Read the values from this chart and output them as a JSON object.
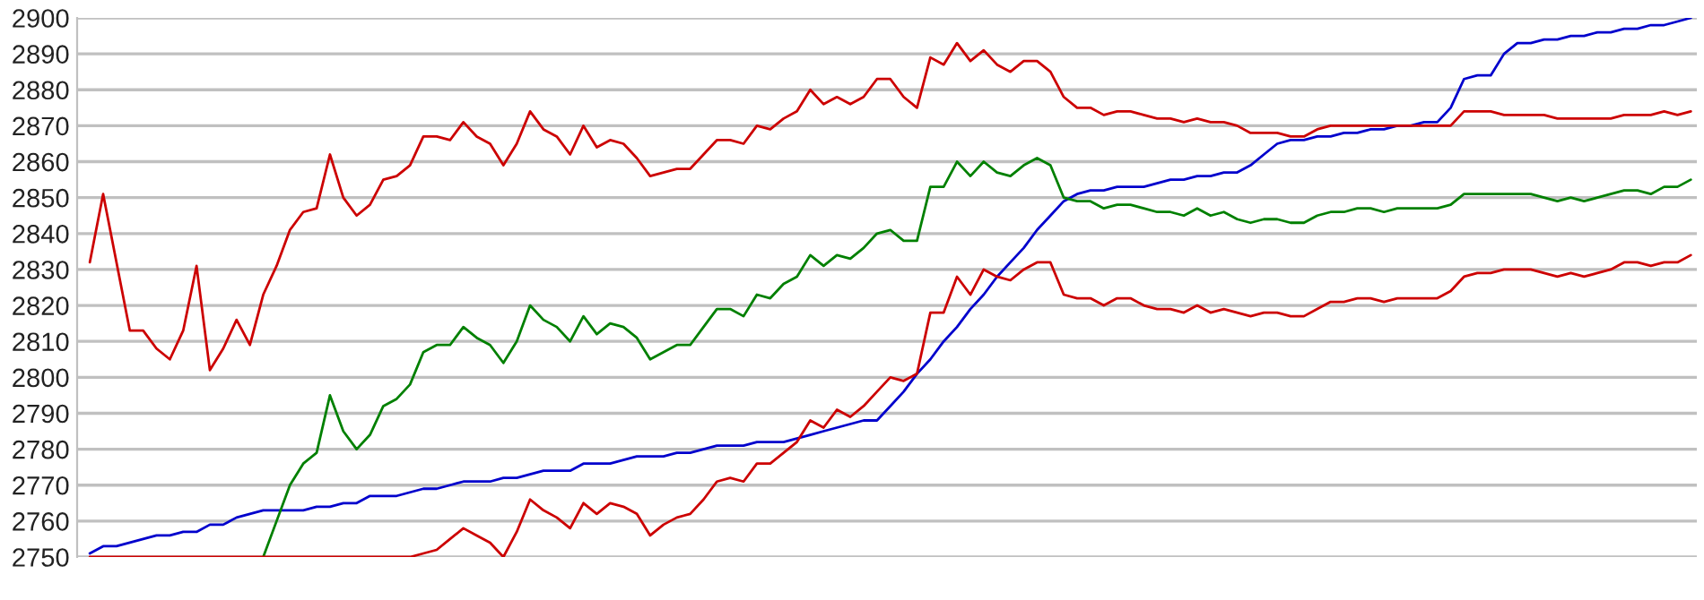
{
  "chart_data": {
    "type": "line",
    "categories": [
      null,
      null,
      null,
      null,
      null,
      null,
      null,
      null,
      null,
      null,
      null,
      null,
      null,
      null,
      null,
      null,
      null,
      null,
      null,
      null,
      null,
      null,
      null,
      null,
      null,
      null,
      null,
      null,
      null,
      null,
      null,
      null,
      null,
      null,
      null,
      null,
      null,
      null,
      null,
      null,
      null,
      null,
      null,
      null,
      null,
      null,
      null,
      null,
      null,
      null,
      null,
      null,
      null,
      null,
      null,
      null,
      null,
      null,
      null,
      null,
      null,
      null,
      null,
      null,
      null,
      null,
      null,
      null,
      null,
      null,
      null,
      null,
      null,
      null,
      null,
      null,
      null,
      null,
      null,
      null,
      null,
      null,
      null,
      null,
      null,
      null,
      null,
      null,
      null,
      null,
      null,
      null,
      null,
      null,
      null,
      null,
      null,
      null,
      null,
      null,
      null,
      null,
      null,
      null,
      null,
      null,
      null,
      null,
      null,
      null,
      null,
      null,
      null,
      null,
      null,
      null,
      null,
      null,
      null,
      null,
      null
    ],
    "ylim": [
      2750,
      2900
    ],
    "yticks": [
      2750,
      2760,
      2770,
      2780,
      2790,
      2800,
      2810,
      2820,
      2830,
      2840,
      2850,
      2860,
      2870,
      2880,
      2890,
      2900
    ],
    "grid": "y",
    "marker": "none",
    "line_style": "solid",
    "series": [
      {
        "color": "#0000cc",
        "values": [
          2751,
          2753,
          2753,
          2754,
          2755,
          2756,
          2756,
          2757,
          2757,
          2759,
          2759,
          2761,
          2762,
          2763,
          2763,
          2763,
          2763,
          2764,
          2764,
          2765,
          2765,
          2767,
          2767,
          2767,
          2768,
          2769,
          2769,
          2770,
          2771,
          2771,
          2771,
          2772,
          2772,
          2773,
          2774,
          2774,
          2774,
          2776,
          2776,
          2776,
          2777,
          2778,
          2778,
          2778,
          2779,
          2779,
          2780,
          2781,
          2781,
          2781,
          2782,
          2782,
          2782,
          2783,
          2784,
          2785,
          2786,
          2787,
          2788,
          2788,
          2792,
          2796,
          2801,
          2805,
          2810,
          2814,
          2819,
          2823,
          2828,
          2832,
          2836,
          2841,
          2845,
          2849,
          2851,
          2852,
          2852,
          2853,
          2853,
          2853,
          2854,
          2855,
          2855,
          2856,
          2856,
          2857,
          2857,
          2859,
          2862,
          2865,
          2866,
          2866,
          2867,
          2867,
          2868,
          2868,
          2869,
          2869,
          2870,
          2870,
          2871,
          2871,
          2875,
          2883,
          2884,
          2884,
          2890,
          2893,
          2893,
          2894,
          2894,
          2895,
          2895,
          2896,
          2896,
          2897,
          2897,
          2898,
          2898,
          2899,
          2900
        ]
      },
      {
        "color": "#008000",
        "values": [
          null,
          null,
          null,
          null,
          null,
          null,
          null,
          null,
          null,
          null,
          null,
          null,
          null,
          2750,
          2760,
          2770,
          2776,
          2779,
          2795,
          2785,
          2780,
          2784,
          2792,
          2794,
          2798,
          2807,
          2809,
          2809,
          2814,
          2811,
          2809,
          2804,
          2810,
          2820,
          2816,
          2814,
          2810,
          2817,
          2812,
          2815,
          2814,
          2811,
          2805,
          2807,
          2809,
          2809,
          2814,
          2819,
          2819,
          2817,
          2823,
          2822,
          2826,
          2828,
          2834,
          2831,
          2834,
          2833,
          2836,
          2840,
          2841,
          2838,
          2838,
          2853,
          2853,
          2860,
          2856,
          2860,
          2857,
          2856,
          2859,
          2861,
          2859,
          2850,
          2849,
          2849,
          2847,
          2848,
          2848,
          2847,
          2846,
          2846,
          2845,
          2847,
          2845,
          2846,
          2844,
          2843,
          2844,
          2844,
          2843,
          2843,
          2845,
          2846,
          2846,
          2847,
          2847,
          2846,
          2847,
          2847,
          2847,
          2847,
          2848,
          2851,
          2851,
          2851,
          2851,
          2851,
          2851,
          2850,
          2849,
          2850,
          2849,
          2850,
          2851,
          2852,
          2852,
          2851,
          2853,
          2853,
          2855
        ]
      },
      {
        "color": "#cc0000",
        "values": [
          2832,
          2851,
          2832,
          2813,
          2813,
          2808,
          2805,
          2813,
          2831,
          2802,
          2808,
          2816,
          2809,
          2823,
          2831,
          2841,
          2846,
          2847,
          2862,
          2850,
          2845,
          2848,
          2855,
          2856,
          2859,
          2867,
          2867,
          2866,
          2871,
          2867,
          2865,
          2859,
          2865,
          2874,
          2869,
          2867,
          2862,
          2870,
          2864,
          2866,
          2865,
          2861,
          2856,
          2857,
          2858,
          2858,
          2862,
          2866,
          2866,
          2865,
          2870,
          2869,
          2872,
          2874,
          2880,
          2876,
          2878,
          2876,
          2878,
          2883,
          2883,
          2878,
          2875,
          2889,
          2887,
          2893,
          2888,
          2891,
          2887,
          2885,
          2888,
          2888,
          2885,
          2878,
          2875,
          2875,
          2873,
          2874,
          2874,
          2873,
          2872,
          2872,
          2871,
          2872,
          2871,
          2871,
          2870,
          2868,
          2868,
          2868,
          2867,
          2867,
          2869,
          2870,
          2870,
          2870,
          2870,
          2870,
          2870,
          2870,
          2870,
          2870,
          2870,
          2874,
          2874,
          2874,
          2873,
          2873,
          2873,
          2873,
          2872,
          2872,
          2872,
          2872,
          2872,
          2873,
          2873,
          2873,
          2874,
          2873,
          2874
        ]
      },
      {
        "color": "#cc0000",
        "values": [
          2750,
          2750,
          2750,
          2750,
          2750,
          2750,
          2750,
          2750,
          2750,
          2750,
          2750,
          2750,
          2750,
          2750,
          2750,
          2750,
          2750,
          2750,
          2750,
          2750,
          2750,
          2750,
          2750,
          2750,
          2750,
          2751,
          2752,
          2755,
          2758,
          2756,
          2754,
          2750,
          2757,
          2766,
          2763,
          2761,
          2758,
          2765,
          2762,
          2765,
          2764,
          2762,
          2756,
          2759,
          2761,
          2762,
          2766,
          2771,
          2772,
          2771,
          2776,
          2776,
          2779,
          2782,
          2788,
          2786,
          2791,
          2789,
          2792,
          2796,
          2800,
          2799,
          2801,
          2818,
          2818,
          2828,
          2823,
          2830,
          2828,
          2827,
          2830,
          2832,
          2832,
          2823,
          2822,
          2822,
          2820,
          2822,
          2822,
          2820,
          2819,
          2819,
          2818,
          2820,
          2818,
          2819,
          2818,
          2817,
          2818,
          2818,
          2817,
          2817,
          2819,
          2821,
          2821,
          2822,
          2822,
          2821,
          2822,
          2822,
          2822,
          2822,
          2824,
          2828,
          2829,
          2829,
          2830,
          2830,
          2830,
          2829,
          2828,
          2829,
          2828,
          2829,
          2830,
          2832,
          2832,
          2831,
          2832,
          2832,
          2834
        ]
      }
    ]
  }
}
